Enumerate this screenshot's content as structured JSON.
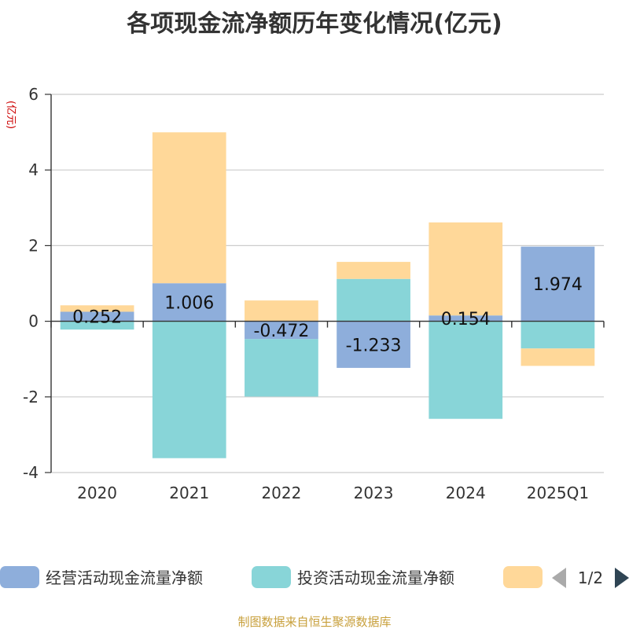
{
  "chart_data": {
    "type": "bar",
    "stacked": true,
    "title": "各项现金流净额历年变化情况(亿元)",
    "ylabel": "(亿元)",
    "ylim": [
      -4,
      6
    ],
    "yticks": [
      -4,
      -2,
      0,
      2,
      4,
      6
    ],
    "grid": true,
    "categories": [
      "2020",
      "2021",
      "2022",
      "2023",
      "2024",
      "2025Q1"
    ],
    "series": [
      {
        "name": "经营活动现金流量净额",
        "color": "#8eaedb",
        "values": [
          0.252,
          1.006,
          -0.472,
          -1.233,
          0.154,
          1.974
        ],
        "labels": [
          "0.252",
          "1.006",
          "-0.472",
          "-1.233",
          "0.154",
          "1.974"
        ]
      },
      {
        "name": "投资活动现金流量净额",
        "color": "#88d5d8",
        "values": [
          -0.22,
          -3.62,
          -1.52,
          1.12,
          -2.58,
          -0.72
        ]
      },
      {
        "name": "",
        "color": "#ffd899",
        "values": [
          0.17,
          3.99,
          0.55,
          0.45,
          2.46,
          -0.46
        ]
      }
    ],
    "legend": {
      "position": "bottom",
      "page": "1/2"
    }
  },
  "footer": "制图数据来自恒生聚源数据库"
}
